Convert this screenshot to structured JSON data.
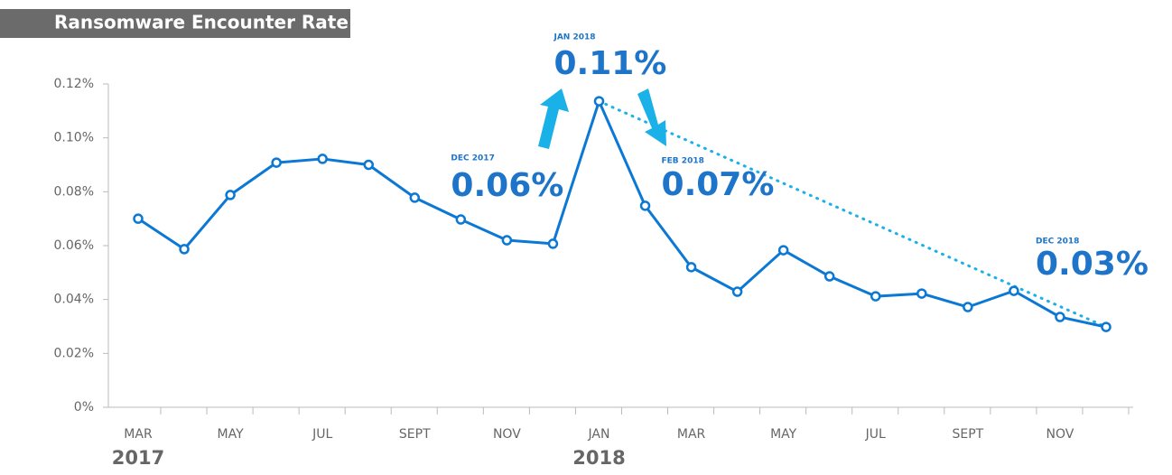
{
  "chart_data": {
    "type": "line",
    "title": "Ransomware Encounter Rate",
    "categories": [
      "MAR",
      null,
      "MAY",
      null,
      "JUL",
      null,
      "SEPT",
      null,
      "NOV",
      null,
      "JAN",
      null,
      "MAR",
      null,
      "MAY",
      null,
      "JUL",
      null,
      "SEPT",
      null,
      "NOV",
      null
    ],
    "year_labels": [
      "2017",
      "2018"
    ],
    "series": [
      {
        "name": "Ransomware encounter rate",
        "color": "#0a78d4",
        "values": [
          0.07,
          0.0587,
          0.0788,
          0.0908,
          0.0922,
          0.09,
          0.0778,
          0.0697,
          0.062,
          0.0607,
          0.1136,
          0.0748,
          0.052,
          0.0429,
          0.0583,
          0.0486,
          0.0412,
          0.0422,
          0.0372,
          0.0432,
          0.0335,
          0.0298
        ],
        "value_labels": [
          null,
          null,
          null,
          null,
          null,
          null,
          null,
          null,
          null,
          "0.06%",
          "0.11%",
          "0.07%",
          null,
          null,
          null,
          null,
          null,
          null,
          null,
          null,
          null,
          "0.03%"
        ],
        "point_dates": [
          null,
          null,
          null,
          null,
          null,
          null,
          null,
          null,
          null,
          "DEC 2017",
          "JAN 2018",
          "FEB 2018",
          null,
          null,
          null,
          null,
          null,
          null,
          null,
          null,
          null,
          "DEC 2018"
        ]
      }
    ],
    "trend_color": "#1ab0e8",
    "ylim": [
      0,
      0.12
    ],
    "yticks": [
      {
        "value": 0,
        "label": "0%"
      },
      {
        "value": 0.02,
        "label": "0.02%"
      },
      {
        "value": 0.04,
        "label": "0.04%"
      },
      {
        "value": 0.06,
        "label": "0.06%"
      },
      {
        "value": 0.08,
        "label": "0.08%"
      },
      {
        "value": 0.1,
        "label": "0.10%"
      },
      {
        "value": 0.12,
        "label": "0.12%"
      }
    ]
  }
}
